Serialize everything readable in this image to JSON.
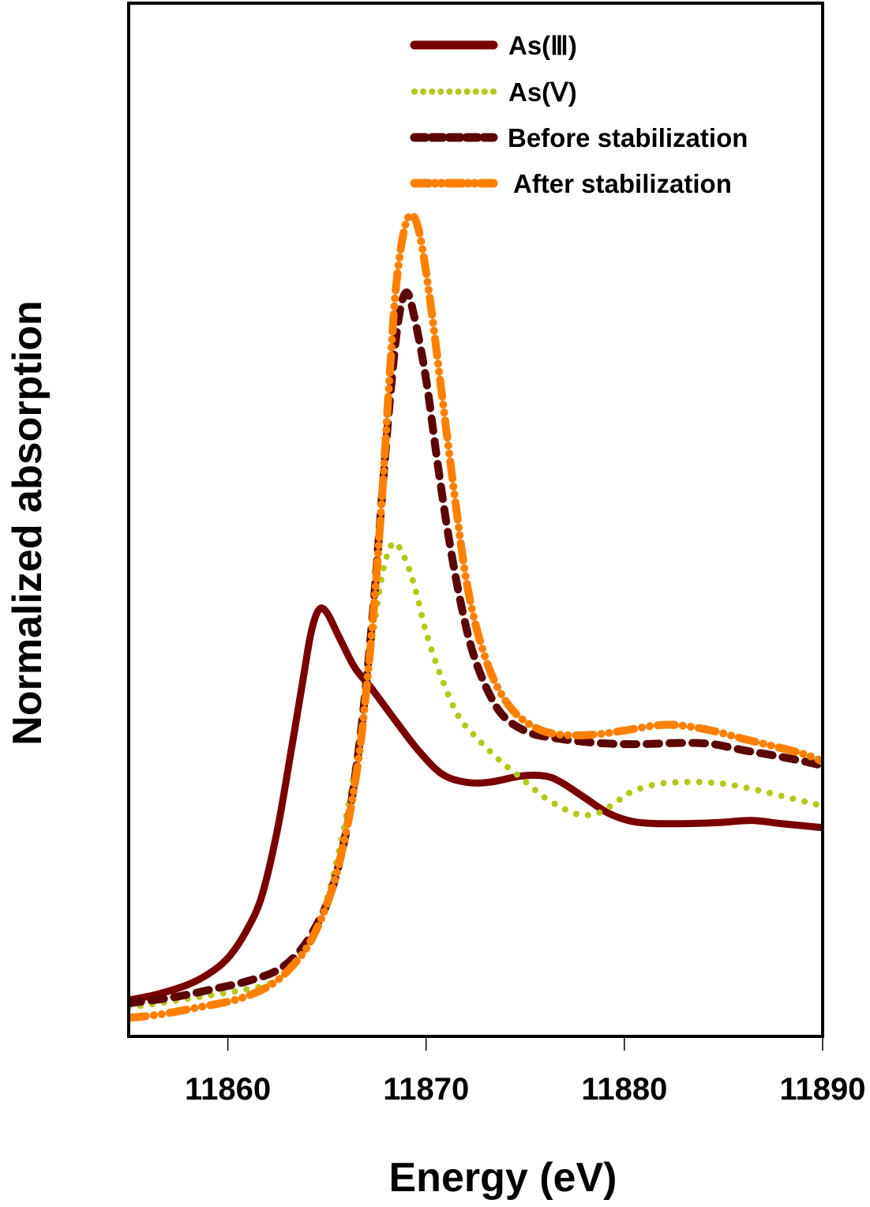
{
  "chart_data": {
    "type": "line",
    "title": "",
    "xlabel": "Energy (eV)",
    "ylabel": "Normalized absorption",
    "xlim": [
      11855,
      11890
    ],
    "ylim": [
      0,
      1
    ],
    "xticks": [
      11860,
      11870,
      11880,
      11890
    ],
    "xtick_labels": [
      "11860",
      "11870",
      "11880",
      "11890"
    ],
    "yticks": [],
    "grid": false,
    "legend_position": "top-right",
    "series": [
      {
        "name": "As(Ⅲ)",
        "style": "solid",
        "color": "#7a0000",
        "x": [
          11855.0,
          11856.5,
          11858.1,
          11859.3,
          11860.1,
          11860.9,
          11861.7,
          11862.5,
          11863.2,
          11863.8,
          11864.2,
          11864.6,
          11865.0,
          11865.6,
          11866.4,
          11867.2,
          11868.4,
          11869.6,
          11870.8,
          11872.0,
          11873.2,
          11874.8,
          11876.0,
          11876.8,
          11878.0,
          11879.2,
          11880.4,
          11881.6,
          11883.2,
          11884.8,
          11886.4,
          11887.9,
          11890.0
        ],
        "y": [
          0.035,
          0.041,
          0.051,
          0.064,
          0.078,
          0.101,
          0.135,
          0.2,
          0.277,
          0.346,
          0.391,
          0.413,
          0.41,
          0.387,
          0.357,
          0.338,
          0.307,
          0.277,
          0.254,
          0.246,
          0.246,
          0.252,
          0.252,
          0.246,
          0.231,
          0.216,
          0.208,
          0.206,
          0.206,
          0.207,
          0.209,
          0.206,
          0.202
        ]
      },
      {
        "name": "As(Ⅴ)",
        "style": "dotted",
        "color": "#b5c81a",
        "x": [
          11855.0,
          11856.5,
          11858.5,
          11860.5,
          11862.1,
          11863.2,
          11864.4,
          11865.2,
          11866.0,
          11866.6,
          11867.0,
          11867.4,
          11867.8,
          11868.3,
          11868.8,
          11869.4,
          11870.0,
          11870.8,
          11871.6,
          11872.4,
          11873.6,
          11874.8,
          11876.0,
          11877.2,
          11878.0,
          11878.8,
          11879.6,
          11880.4,
          11881.6,
          11882.8,
          11884.0,
          11885.2,
          11886.8,
          11888.3,
          11890.0
        ],
        "y": [
          0.028,
          0.032,
          0.038,
          0.044,
          0.051,
          0.066,
          0.101,
          0.147,
          0.216,
          0.284,
          0.346,
          0.399,
          0.448,
          0.477,
          0.468,
          0.437,
          0.391,
          0.346,
          0.311,
          0.292,
          0.269,
          0.25,
          0.231,
          0.218,
          0.214,
          0.217,
          0.227,
          0.237,
          0.244,
          0.246,
          0.246,
          0.244,
          0.238,
          0.231,
          0.223
        ]
      },
      {
        "name": "Before stabilization",
        "style": "dashed",
        "color": "#5c0505",
        "x": [
          11855.0,
          11857.3,
          11859.3,
          11860.9,
          11862.5,
          11863.6,
          11864.4,
          11865.2,
          11866.0,
          11866.6,
          11867.0,
          11867.4,
          11867.8,
          11868.2,
          11868.6,
          11869.0,
          11869.4,
          11870.0,
          11870.6,
          11871.2,
          11871.8,
          11872.4,
          11873.2,
          11874.0,
          11875.2,
          11876.4,
          11878.0,
          11879.6,
          11881.2,
          11882.8,
          11884.4,
          11886.0,
          11887.5,
          11889.1,
          11890.0
        ],
        "y": [
          0.032,
          0.038,
          0.046,
          0.053,
          0.064,
          0.082,
          0.105,
          0.139,
          0.201,
          0.277,
          0.346,
          0.429,
          0.529,
          0.621,
          0.693,
          0.72,
          0.697,
          0.636,
          0.552,
          0.476,
          0.415,
          0.369,
          0.331,
          0.308,
          0.294,
          0.289,
          0.285,
          0.283,
          0.283,
          0.284,
          0.283,
          0.277,
          0.272,
          0.266,
          0.262
        ]
      },
      {
        "name": "After stabilization",
        "style": "dashdot",
        "color": "#ff8000",
        "x": [
          11855.0,
          11856.5,
          11858.5,
          11860.5,
          11862.1,
          11863.2,
          11864.2,
          11865.2,
          11866.0,
          11866.6,
          11867.0,
          11867.4,
          11867.8,
          11868.2,
          11868.5,
          11868.9,
          11869.3,
          11869.7,
          11870.2,
          11870.8,
          11871.4,
          11872.0,
          11872.6,
          11873.4,
          11874.4,
          11875.6,
          11876.8,
          11878.4,
          11880.0,
          11881.6,
          11882.8,
          11884.4,
          11886.0,
          11887.5,
          11889.1,
          11890.0
        ],
        "y": [
          0.018,
          0.021,
          0.028,
          0.036,
          0.049,
          0.067,
          0.093,
          0.139,
          0.201,
          0.269,
          0.338,
          0.422,
          0.529,
          0.651,
          0.728,
          0.781,
          0.795,
          0.774,
          0.713,
          0.621,
          0.529,
          0.445,
          0.391,
          0.346,
          0.315,
          0.298,
          0.292,
          0.292,
          0.296,
          0.301,
          0.301,
          0.296,
          0.288,
          0.281,
          0.273,
          0.266
        ]
      }
    ]
  }
}
